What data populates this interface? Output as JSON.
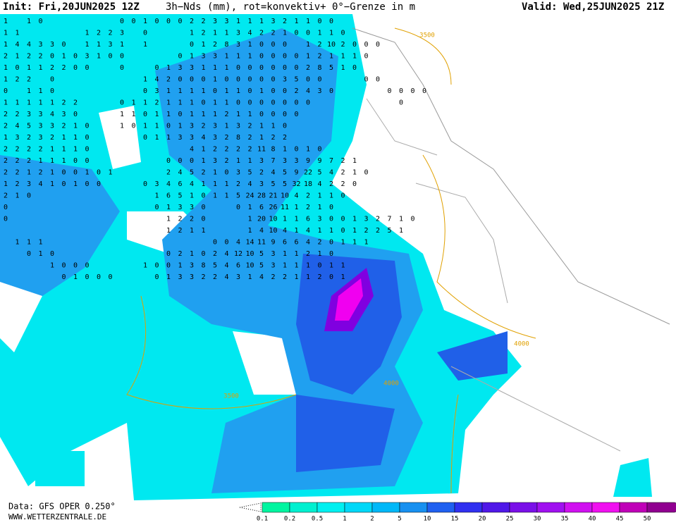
{
  "header": {
    "init": "Init: Fri,20JUN2025 12Z",
    "title": "3h−Nds (mm), rot=konvektiv+ 0°−Grenze in m",
    "valid": "Valid: Wed,25JUN2025 21Z"
  },
  "footer": {
    "data": "Data: GFS OPER 0.250°",
    "site": "WWW.WETTERZENTRALE.DE"
  },
  "colorbar": {
    "labels": [
      0.1,
      0.2,
      0.5,
      1,
      2,
      5,
      10,
      15,
      20,
      25,
      30,
      35,
      40,
      45,
      50
    ],
    "colors": [
      "#00f5a0",
      "#00f0d0",
      "#00f0f0",
      "#00d8f8",
      "#00b8f8",
      "#1890f0",
      "#2060f0",
      "#3030f0",
      "#5018e8",
      "#7a10e8",
      "#a010f0",
      "#d010f0",
      "#f010f0",
      "#c000b8",
      "#900090"
    ]
  },
  "contour_labels": [
    "3500",
    "3500",
    "4000",
    "4000"
  ],
  "grid_values": [
    [
      1,
      null,
      1,
      0,
      null,
      null,
      null,
      null,
      null,
      null,
      0,
      0,
      1,
      0,
      0,
      0,
      2,
      2,
      3,
      3,
      1,
      1,
      1,
      3,
      2,
      1,
      1,
      0,
      0
    ],
    [
      1,
      1,
      null,
      null,
      null,
      null,
      null,
      1,
      2,
      2,
      3,
      null,
      0,
      null,
      null,
      null,
      1,
      2,
      1,
      1,
      3,
      4,
      2,
      2,
      1,
      0,
      0,
      1,
      1,
      0
    ],
    [
      1,
      4,
      4,
      3,
      3,
      0,
      null,
      1,
      1,
      3,
      1,
      null,
      1,
      null,
      null,
      null,
      0,
      1,
      2,
      8,
      3,
      1,
      0,
      0,
      0,
      null,
      1,
      2,
      10,
      2,
      0,
      0,
      0
    ],
    [
      2,
      1,
      2,
      2,
      0,
      1,
      0,
      3,
      1,
      0,
      0,
      null,
      null,
      null,
      null,
      0,
      1,
      3,
      3,
      1,
      1,
      1,
      0,
      0,
      0,
      0,
      1,
      2,
      1,
      1,
      1,
      0
    ],
    [
      1,
      0,
      1,
      1,
      2,
      2,
      0,
      0,
      null,
      null,
      0,
      null,
      null,
      0,
      1,
      3,
      3,
      1,
      1,
      1,
      0,
      0,
      0,
      0,
      0,
      0,
      2,
      8,
      5,
      1,
      0
    ],
    [
      1,
      2,
      2,
      null,
      0,
      null,
      null,
      null,
      null,
      null,
      null,
      null,
      1,
      4,
      2,
      0,
      0,
      0,
      1,
      0,
      0,
      0,
      0,
      0,
      3,
      5,
      0,
      0,
      null,
      null,
      null,
      0,
      0
    ],
    [
      0,
      null,
      1,
      1,
      0,
      null,
      null,
      null,
      null,
      null,
      null,
      null,
      0,
      3,
      1,
      1,
      1,
      1,
      0,
      1,
      1,
      0,
      1,
      0,
      0,
      2,
      4,
      3,
      0,
      null,
      null,
      null,
      null,
      0,
      0,
      0,
      0
    ],
    [
      1,
      1,
      1,
      1,
      1,
      2,
      2,
      null,
      null,
      null,
      0,
      1,
      1,
      2,
      1,
      1,
      1,
      0,
      1,
      1,
      0,
      0,
      0,
      0,
      0,
      0,
      0,
      null,
      null,
      null,
      null,
      null,
      null,
      null,
      0
    ],
    [
      2,
      2,
      3,
      3,
      4,
      3,
      0,
      null,
      null,
      null,
      1,
      1,
      0,
      1,
      1,
      0,
      1,
      1,
      1,
      2,
      1,
      1,
      0,
      0,
      0,
      0
    ],
    [
      2,
      4,
      5,
      3,
      3,
      2,
      1,
      0,
      null,
      null,
      1,
      0,
      1,
      1,
      0,
      1,
      3,
      2,
      3,
      1,
      3,
      2,
      1,
      1,
      0
    ],
    [
      1,
      3,
      2,
      3,
      2,
      1,
      1,
      0,
      null,
      null,
      null,
      null,
      0,
      1,
      1,
      3,
      3,
      4,
      3,
      2,
      8,
      2,
      1,
      2,
      2
    ],
    [
      2,
      2,
      2,
      2,
      1,
      1,
      1,
      0,
      null,
      null,
      null,
      null,
      null,
      null,
      null,
      null,
      4,
      1,
      2,
      2,
      2,
      2,
      11,
      8,
      1,
      0,
      1,
      0
    ],
    [
      2,
      2,
      2,
      1,
      1,
      1,
      0,
      0,
      null,
      null,
      null,
      null,
      null,
      null,
      0,
      0,
      0,
      1,
      3,
      2,
      1,
      1,
      3,
      7,
      3,
      3,
      9,
      9,
      7,
      2,
      1
    ],
    [
      2,
      2,
      1,
      2,
      1,
      0,
      0,
      1,
      0,
      1,
      null,
      null,
      null,
      null,
      2,
      4,
      5,
      2,
      1,
      0,
      3,
      5,
      2,
      4,
      5,
      9,
      22,
      5,
      4,
      2,
      1,
      0
    ],
    [
      1,
      2,
      3,
      4,
      1,
      0,
      1,
      0,
      0,
      null,
      null,
      null,
      0,
      3,
      4,
      6,
      4,
      1,
      1,
      1,
      2,
      4,
      3,
      5,
      5,
      32,
      18,
      4,
      2,
      2,
      0
    ],
    [
      2,
      1,
      0,
      null,
      null,
      null,
      null,
      null,
      null,
      null,
      null,
      null,
      null,
      1,
      6,
      5,
      1,
      0,
      1,
      1,
      5,
      24,
      28,
      21,
      10,
      4,
      2,
      1,
      1,
      0
    ],
    [
      0,
      null,
      null,
      null,
      null,
      null,
      null,
      null,
      null,
      null,
      null,
      null,
      null,
      0,
      1,
      3,
      3,
      0,
      null,
      null,
      0,
      1,
      6,
      26,
      11,
      1,
      2,
      1,
      0
    ],
    [
      0,
      null,
      null,
      null,
      null,
      null,
      null,
      null,
      null,
      null,
      null,
      null,
      null,
      null,
      1,
      2,
      2,
      0,
      null,
      null,
      null,
      1,
      20,
      10,
      1,
      1,
      6,
      3,
      0,
      0,
      1,
      3,
      2,
      7,
      1,
      0
    ],
    [
      null,
      null,
      null,
      null,
      null,
      null,
      null,
      null,
      null,
      null,
      null,
      null,
      null,
      null,
      1,
      2,
      1,
      1,
      null,
      null,
      null,
      1,
      4,
      10,
      4,
      1,
      4,
      1,
      1,
      0,
      1,
      2,
      2,
      5,
      1
    ],
    [
      null,
      1,
      1,
      1,
      null,
      null,
      null,
      null,
      null,
      null,
      null,
      null,
      null,
      null,
      null,
      null,
      null,
      null,
      0,
      0,
      4,
      14,
      11,
      9,
      6,
      6,
      4,
      2,
      0,
      1,
      1,
      1
    ],
    [
      null,
      null,
      0,
      1,
      0,
      null,
      null,
      null,
      null,
      null,
      null,
      null,
      null,
      null,
      0,
      2,
      1,
      0,
      2,
      4,
      12,
      10,
      5,
      3,
      1,
      1,
      2,
      1,
      0
    ],
    [
      null,
      null,
      null,
      null,
      1,
      0,
      0,
      0,
      null,
      null,
      null,
      null,
      1,
      0,
      0,
      1,
      3,
      8,
      5,
      4,
      6,
      10,
      5,
      3,
      1,
      1,
      1,
      0,
      1,
      1
    ],
    [
      null,
      null,
      null,
      null,
      null,
      0,
      1,
      0,
      0,
      0,
      null,
      null,
      null,
      0,
      1,
      3,
      3,
      2,
      2,
      4,
      3,
      1,
      4,
      2,
      2,
      1,
      1,
      2,
      0,
      1
    ]
  ]
}
